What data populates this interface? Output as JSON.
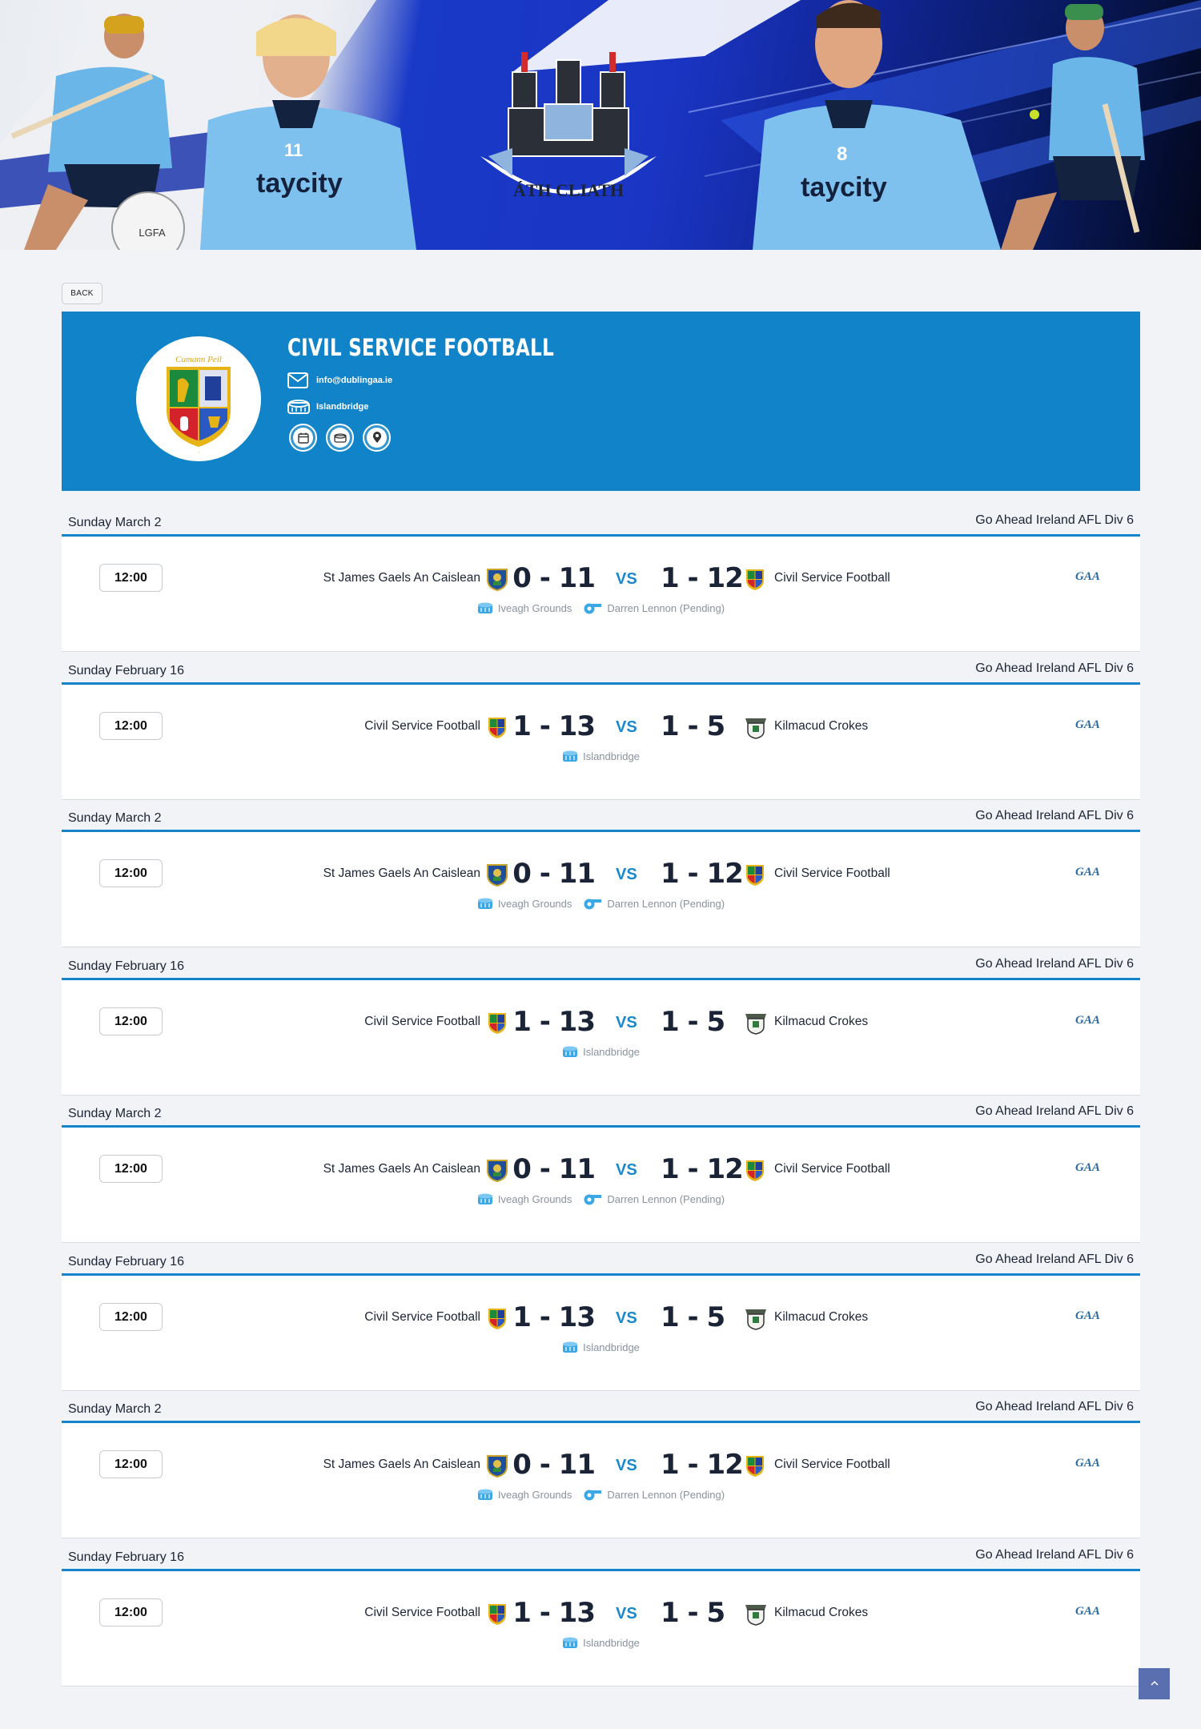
{
  "hero": {
    "crest_text": "ÁTH CLIATH",
    "left_player_sponsor": "taycity",
    "right_player_sponsor": "taycity",
    "left_player_number": "11",
    "right_player_number": "8",
    "ball_text": "LGFA"
  },
  "back_label": "BACK",
  "club": {
    "name": "CIVIL SERVICE FOOTBALL",
    "email": "info@dublingaa.ie",
    "ground": "Islandbridge",
    "crest_motto": "Cumann Peil",
    "actions": [
      "calendar-icon",
      "stadium-icon",
      "location-pin-icon"
    ]
  },
  "fixtures": [
    {
      "date": "Sunday March 2",
      "competition": "Go Ahead Ireland AFL Div 6",
      "time": "12:00",
      "home": "St James Gaels An Caislean",
      "home_score": "0 - 11",
      "vs": "VS",
      "away_score": "1 - 12",
      "away": "Civil Service Football",
      "venue": "Iveagh Grounds",
      "referee": "Darren Lennon (Pending)",
      "home_crest": "stjames",
      "away_crest": "civil"
    },
    {
      "date": "Sunday February 16",
      "competition": "Go Ahead Ireland AFL Div 6",
      "time": "12:00",
      "home": "Civil Service Football",
      "home_score": "1 - 13",
      "vs": "VS",
      "away_score": "1 - 5",
      "away": "Kilmacud Crokes",
      "venue": "Islandbridge",
      "referee": "",
      "home_crest": "civil",
      "away_crest": "kilmacud"
    },
    {
      "date": "Sunday March 2",
      "competition": "Go Ahead Ireland AFL Div 6",
      "time": "12:00",
      "home": "St James Gaels An Caislean",
      "home_score": "0 - 11",
      "vs": "VS",
      "away_score": "1 - 12",
      "away": "Civil Service Football",
      "venue": "Iveagh Grounds",
      "referee": "Darren Lennon (Pending)",
      "home_crest": "stjames",
      "away_crest": "civil"
    },
    {
      "date": "Sunday February 16",
      "competition": "Go Ahead Ireland AFL Div 6",
      "time": "12:00",
      "home": "Civil Service Football",
      "home_score": "1 - 13",
      "vs": "VS",
      "away_score": "1 - 5",
      "away": "Kilmacud Crokes",
      "venue": "Islandbridge",
      "referee": "",
      "home_crest": "civil",
      "away_crest": "kilmacud"
    },
    {
      "date": "Sunday March 2",
      "competition": "Go Ahead Ireland AFL Div 6",
      "time": "12:00",
      "home": "St James Gaels An Caislean",
      "home_score": "0 - 11",
      "vs": "VS",
      "away_score": "1 - 12",
      "away": "Civil Service Football",
      "venue": "Iveagh Grounds",
      "referee": "Darren Lennon (Pending)",
      "home_crest": "stjames",
      "away_crest": "civil"
    },
    {
      "date": "Sunday February 16",
      "competition": "Go Ahead Ireland AFL Div 6",
      "time": "12:00",
      "home": "Civil Service Football",
      "home_score": "1 - 13",
      "vs": "VS",
      "away_score": "1 - 5",
      "away": "Kilmacud Crokes",
      "venue": "Islandbridge",
      "referee": "",
      "home_crest": "civil",
      "away_crest": "kilmacud"
    },
    {
      "date": "Sunday March 2",
      "competition": "Go Ahead Ireland AFL Div 6",
      "time": "12:00",
      "home": "St James Gaels An Caislean",
      "home_score": "0 - 11",
      "vs": "VS",
      "away_score": "1 - 12",
      "away": "Civil Service Football",
      "venue": "Iveagh Grounds",
      "referee": "Darren Lennon (Pending)",
      "home_crest": "stjames",
      "away_crest": "civil"
    },
    {
      "date": "Sunday February 16",
      "competition": "Go Ahead Ireland AFL Div 6",
      "time": "12:00",
      "home": "Civil Service Football",
      "home_score": "1 - 13",
      "vs": "VS",
      "away_score": "1 - 5",
      "away": "Kilmacud Crokes",
      "venue": "Islandbridge",
      "referee": "",
      "home_crest": "civil",
      "away_crest": "kilmacud"
    }
  ],
  "colors": {
    "accent": "#1184c9",
    "vs": "#1b88cc",
    "scroll_top": "#5a6fb0"
  },
  "scroll_top_icon": "chevron-up-icon"
}
